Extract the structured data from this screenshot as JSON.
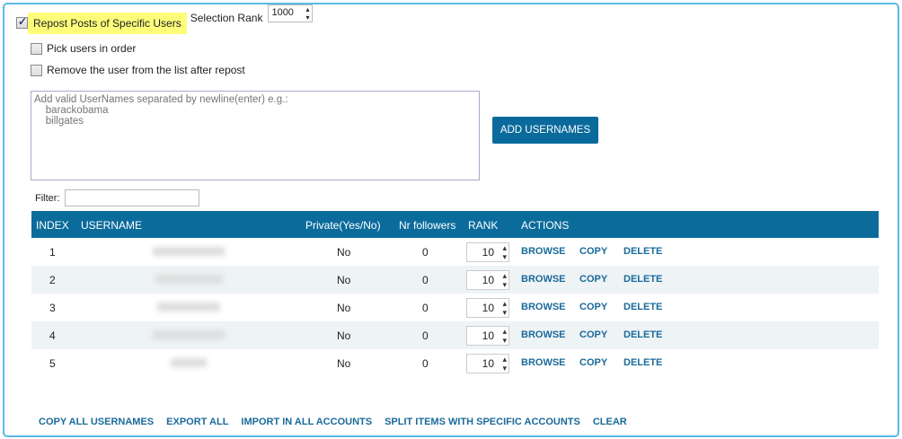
{
  "options": {
    "repost_label": "Repost Posts of Specific Users",
    "repost_checked": true,
    "rank_label": "Selection Rank",
    "rank_value": "1000",
    "pick_order_label": "Pick users in order",
    "pick_order_checked": false,
    "remove_label": "Remove the user from the list after repost",
    "remove_checked": false
  },
  "usernames_input": {
    "placeholder": "Add valid UserNames separated by newline(enter) e.g.:\n    barackobama\n    billgates"
  },
  "add_button": "ADD USERNAMES",
  "filter_label": "Filter:",
  "table": {
    "headers": [
      "INDEX",
      "USERNAME",
      "Private(Yes/No)",
      "Nr followers",
      "RANK",
      "ACTIONS"
    ],
    "rows": [
      {
        "index": "1",
        "private": "No",
        "followers": "0",
        "rank": "10"
      },
      {
        "index": "2",
        "private": "No",
        "followers": "0",
        "rank": "10"
      },
      {
        "index": "3",
        "private": "No",
        "followers": "0",
        "rank": "10"
      },
      {
        "index": "4",
        "private": "No",
        "followers": "0",
        "rank": "10"
      },
      {
        "index": "5",
        "private": "No",
        "followers": "0",
        "rank": "10"
      }
    ],
    "actions": [
      "BROWSE",
      "COPY",
      "DELETE"
    ]
  },
  "footer": [
    "COPY ALL USERNAMES",
    "EXPORT ALL",
    "IMPORT IN ALL ACCOUNTS",
    "SPLIT ITEMS WITH SPECIFIC ACCOUNTS",
    "CLEAR"
  ],
  "colors": {
    "accent": "#0b6c9c",
    "link": "#1a6a9a",
    "highlight": "#fdfd7a"
  }
}
